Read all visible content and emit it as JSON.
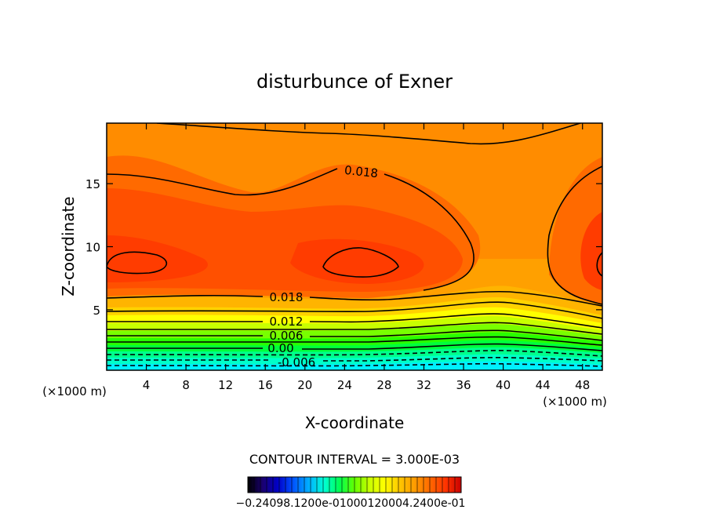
{
  "chart_data": {
    "type": "contour",
    "title": "disturbunce of Exner",
    "xlabel": "X-coordinate",
    "ylabel": "Z-coordinate",
    "x_unit_label": "(×1000 m)",
    "y_unit_label": "(×1000 m)",
    "xlim": [
      0,
      50
    ],
    "ylim": [
      0.2,
      19.8
    ],
    "x_ticks": [
      "4",
      "8",
      "12",
      "16",
      "20",
      "24",
      "28",
      "32",
      "36",
      "40",
      "44",
      "48"
    ],
    "y_ticks": [
      "5",
      "10",
      "15"
    ],
    "x_tick_values": [
      4,
      8,
      12,
      16,
      20,
      24,
      28,
      32,
      36,
      40,
      44,
      48
    ],
    "y_tick_values": [
      5,
      10,
      15
    ],
    "contour_interval_text": "CONTOUR INTERVAL = 3.000E-03",
    "contour_labels": [
      {
        "text": "0.018",
        "x": 25.4,
        "y": 15.8
      },
      {
        "text": "0.018",
        "x": 18.5,
        "y": 5.8
      },
      {
        "text": "0.012",
        "x": 18.5,
        "y": 4.0
      },
      {
        "text": "0.006",
        "x": 18.5,
        "y": 2.7
      },
      {
        "text": "0.00",
        "x": 18.0,
        "y": 1.7
      },
      {
        "text": "-0.006",
        "x": 19.0,
        "y": 0.7
      }
    ],
    "colorbar_labels_text": "−0.24098.1200e-01000120004.2400e-01",
    "colorbar_colors": [
      "#000000",
      "#1a0070",
      "#0000c8",
      "#0050ff",
      "#00b4ff",
      "#00ffd2",
      "#00ff50",
      "#64ff00",
      "#c8ff00",
      "#ffff00",
      "#ffc800",
      "#ff9600",
      "#ff6400",
      "#ff3200",
      "#c80000"
    ]
  }
}
